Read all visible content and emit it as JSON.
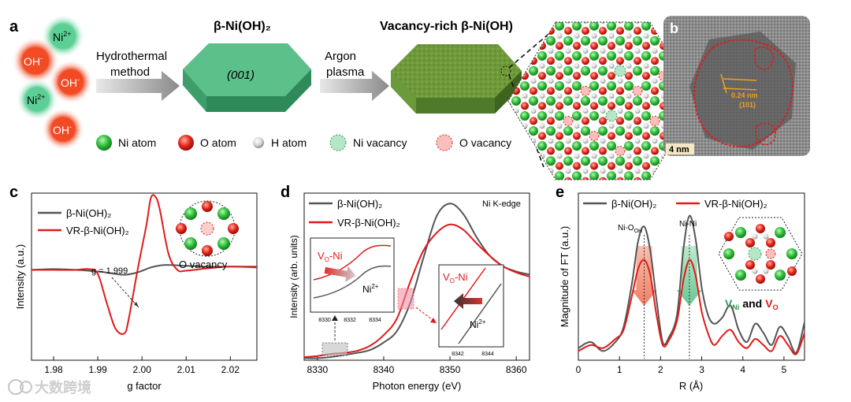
{
  "figure": {
    "panel_a": {
      "label": "a",
      "ions": {
        "ni": "Ni",
        "ni_sup": "2+",
        "oh": "OH",
        "oh_sup": "-"
      },
      "step1": [
        "Hydrothermal",
        "method"
      ],
      "step2": [
        "Argon",
        "plasma"
      ],
      "title_left": "β-Ni(OH)₂",
      "facet": "(001)",
      "title_right": "Vacancy-rich β-Ni(OH)",
      "legend": [
        "Ni atom",
        "O atom",
        "H atom",
        "Ni vacancy",
        "O vacancy"
      ]
    },
    "panel_b": {
      "label": "b",
      "spacing": "0.24 nm",
      "plane": "(101)",
      "scale": "4 nm"
    },
    "watermark": "大数跨境"
  },
  "chart_data": [
    {
      "id": "c",
      "type": "line",
      "label": "c",
      "xlabel": "g factor",
      "ylabel": "Intensity (a.u.)",
      "xlim": [
        1.975,
        2.026
      ],
      "ylim": [
        -1.05,
        1.0
      ],
      "xticks": [
        1.98,
        1.99,
        2.0,
        2.01,
        2.02
      ],
      "xtick_labels": [
        "1.98",
        "1.99",
        "2.00",
        "2.01",
        "2.02"
      ],
      "annotation": "g = 1.999",
      "inset_label": "O vacancy",
      "series": [
        {
          "name": "β-Ni(OH)₂",
          "color": "#555555",
          "x": [
            1.975,
            1.98,
            1.985,
            1.99,
            1.993,
            1.996,
            1.999,
            2.002,
            2.005,
            2.01,
            2.015,
            2.02,
            2.026
          ],
          "y": [
            0.0,
            0.01,
            0.0,
            -0.02,
            -0.04,
            -0.06,
            -0.03,
            0.03,
            0.06,
            0.05,
            0.04,
            0.04,
            0.04
          ]
        },
        {
          "name": "VR-β-Ni(OH)₂",
          "color": "#e01a1a",
          "x": [
            1.975,
            1.98,
            1.985,
            1.988,
            1.99,
            1.992,
            1.994,
            1.996,
            1.997,
            1.999,
            2.001,
            2.002,
            2.003,
            2.004,
            2.006,
            2.008,
            2.01,
            2.015,
            2.02,
            2.026
          ],
          "y": [
            0.0,
            0.0,
            0.0,
            0.01,
            -0.05,
            -0.4,
            -0.72,
            -0.78,
            -0.6,
            0.0,
            0.55,
            0.88,
            0.9,
            0.75,
            0.2,
            0.0,
            -0.01,
            0.02,
            0.04,
            0.03
          ]
        }
      ]
    },
    {
      "id": "d",
      "type": "line",
      "label": "d",
      "xlabel": "Photon energy (eV)",
      "ylabel": "Intensity (arb. units)",
      "edge_label": "Ni K-edge",
      "xlim": [
        8328,
        8362
      ],
      "ylim": [
        0,
        1.6
      ],
      "xticks": [
        8330,
        8340,
        8350,
        8360
      ],
      "xtick_labels": [
        "8330",
        "8340",
        "8350",
        "8360"
      ],
      "inset1": {
        "label_v": "V",
        "label_sub": "O",
        "label_ni": "-Ni",
        "ni2": "Ni",
        "ni2_sup": "2+",
        "xtick_labels": [
          "8330",
          "8332",
          "8334"
        ]
      },
      "inset2": {
        "label_v": "V",
        "label_sub": "O",
        "label_ni": "-Ni",
        "ni2": "Ni",
        "ni2_sup": "2+",
        "xtick_labels": [
          "8342",
          "8344"
        ]
      },
      "series": [
        {
          "name": "β-Ni(OH)₂",
          "color": "#555555",
          "x": [
            8328,
            8330,
            8332,
            8334,
            8336,
            8338,
            8340,
            8342,
            8344,
            8346,
            8348,
            8350,
            8352,
            8354,
            8356,
            8358,
            8360,
            8362
          ],
          "y": [
            0.02,
            0.02,
            0.03,
            0.05,
            0.07,
            0.1,
            0.17,
            0.28,
            0.55,
            0.98,
            1.38,
            1.5,
            1.4,
            1.18,
            1.0,
            0.9,
            0.85,
            0.82
          ]
        },
        {
          "name": "VR-β-Ni(OH)₂",
          "color": "#e01a1a",
          "x": [
            8328,
            8330,
            8332,
            8334,
            8336,
            8338,
            8340,
            8342,
            8344,
            8346,
            8348,
            8350,
            8352,
            8354,
            8356,
            8358,
            8360,
            8362
          ],
          "y": [
            0.03,
            0.04,
            0.06,
            0.07,
            0.09,
            0.14,
            0.24,
            0.4,
            0.75,
            1.05,
            1.22,
            1.3,
            1.25,
            1.12,
            1.0,
            0.9,
            0.84,
            0.8
          ]
        }
      ]
    },
    {
      "id": "e",
      "type": "line",
      "label": "e",
      "xlabel": "R (Å)",
      "ylabel": "Magnitude of FT (a.u.)",
      "xlim": [
        0,
        5.5
      ],
      "ylim": [
        0,
        1.1
      ],
      "xticks": [
        0,
        1,
        2,
        3,
        4,
        5
      ],
      "xtick_labels": [
        "0",
        "1",
        "2",
        "3",
        "4",
        "5"
      ],
      "peak1_label": "Ni-O",
      "peak1_sub": "OH",
      "peak2_label": "Ni-Ni",
      "vac_ni": "V",
      "vac_ni_sub": "Ni",
      "vac_and": "and",
      "vac_o": "V",
      "vac_o_sub": "O",
      "series": [
        {
          "name": "β-Ni(OH)₂",
          "color": "#555555",
          "x": [
            0,
            0.3,
            0.6,
            0.9,
            1.1,
            1.3,
            1.45,
            1.6,
            1.75,
            1.9,
            2.05,
            2.2,
            2.4,
            2.55,
            2.7,
            2.85,
            3.0,
            3.15,
            3.3,
            3.5,
            3.7,
            3.9,
            4.1,
            4.3,
            4.5,
            4.7,
            4.9,
            5.1,
            5.3,
            5.5
          ],
          "y": [
            0.08,
            0.12,
            0.06,
            0.12,
            0.22,
            0.5,
            0.78,
            0.88,
            0.72,
            0.4,
            0.12,
            0.15,
            0.3,
            0.72,
            0.95,
            0.8,
            0.48,
            0.3,
            0.24,
            0.28,
            0.36,
            0.2,
            0.12,
            0.24,
            0.18,
            0.1,
            0.22,
            0.15,
            0.05,
            0.25
          ]
        },
        {
          "name": "VR-β-Ni(OH)₂",
          "color": "#e01a1a",
          "x": [
            0,
            0.3,
            0.6,
            0.9,
            1.1,
            1.3,
            1.45,
            1.6,
            1.75,
            1.9,
            2.05,
            2.2,
            2.4,
            2.55,
            2.7,
            2.85,
            3.0,
            3.15,
            3.3,
            3.5,
            3.7,
            3.9,
            4.1,
            4.3,
            4.5,
            4.7,
            4.9,
            5.1,
            5.3,
            5.5
          ],
          "y": [
            0.06,
            0.1,
            0.08,
            0.14,
            0.2,
            0.42,
            0.6,
            0.66,
            0.56,
            0.3,
            0.1,
            0.13,
            0.26,
            0.52,
            0.66,
            0.56,
            0.32,
            0.18,
            0.1,
            0.16,
            0.2,
            0.12,
            0.08,
            0.14,
            0.1,
            0.06,
            0.16,
            0.1,
            0.04,
            0.18
          ]
        }
      ]
    }
  ]
}
